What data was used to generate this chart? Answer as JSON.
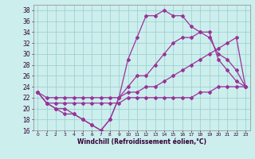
{
  "background_color": "#cceeed",
  "grid_color": "#99cccc",
  "line_color": "#993399",
  "hours": [
    0,
    1,
    2,
    3,
    4,
    5,
    6,
    7,
    8,
    9,
    10,
    11,
    12,
    13,
    14,
    15,
    16,
    17,
    18,
    19,
    20,
    21,
    22,
    23
  ],
  "curve_spike": [
    23,
    21,
    20,
    19,
    19,
    18,
    17,
    16,
    18,
    22,
    29,
    33,
    37,
    37,
    38,
    37,
    37,
    35,
    34,
    34,
    29,
    27,
    25,
    24
  ],
  "curve_mid": [
    23,
    21,
    20,
    20,
    19,
    18,
    17,
    16,
    18,
    22,
    24,
    26,
    26,
    28,
    30,
    32,
    33,
    33,
    34,
    33,
    30,
    29,
    27,
    24
  ],
  "curve_high_straight": [
    23,
    22,
    22,
    22,
    22,
    22,
    22,
    22,
    22,
    22,
    23,
    23,
    24,
    24,
    25,
    26,
    27,
    28,
    29,
    30,
    31,
    32,
    33,
    24
  ],
  "curve_low_straight": [
    23,
    21,
    21,
    21,
    21,
    21,
    21,
    21,
    21,
    21,
    22,
    22,
    22,
    22,
    22,
    22,
    22,
    22,
    23,
    23,
    24,
    24,
    24,
    24
  ],
  "xlabel": "Windchill (Refroidissement éolien,°C)",
  "ylim": [
    16,
    39
  ],
  "ytick_vals": [
    16,
    18,
    20,
    22,
    24,
    26,
    28,
    30,
    32,
    34,
    36,
    38
  ],
  "xlim": [
    -0.5,
    23.5
  ]
}
